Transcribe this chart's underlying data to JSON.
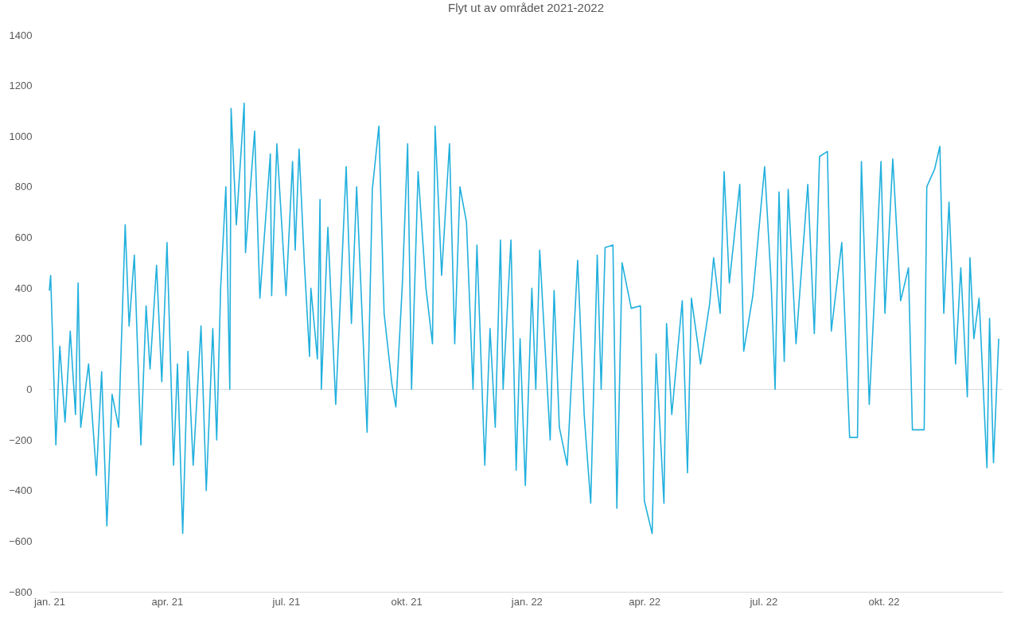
{
  "chart_data": {
    "type": "line",
    "title": "Flyt ut av området 2021-2022",
    "x": [
      "2021-01-01",
      "2021-01-02",
      "2021-01-06",
      "2021-01-09",
      "2021-01-13",
      "2021-01-17",
      "2021-01-21",
      "2021-01-23",
      "2021-01-25",
      "2021-01-31",
      "2021-02-06",
      "2021-02-10",
      "2021-02-14",
      "2021-02-18",
      "2021-02-23",
      "2021-02-28",
      "2021-03-03",
      "2021-03-07",
      "2021-03-12",
      "2021-03-16",
      "2021-03-19",
      "2021-03-24",
      "2021-03-28",
      "2021-04-01",
      "2021-04-06",
      "2021-04-09",
      "2021-04-13",
      "2021-04-17",
      "2021-04-21",
      "2021-04-27",
      "2021-05-01",
      "2021-05-06",
      "2021-05-09",
      "2021-05-12",
      "2021-05-16",
      "2021-05-19",
      "2021-05-20",
      "2021-05-24",
      "2021-05-30",
      "2021-05-31",
      "2021-06-07",
      "2021-06-11",
      "2021-06-19",
      "2021-06-20",
      "2021-06-24",
      "2021-07-01",
      "2021-07-06",
      "2021-07-08",
      "2021-07-11",
      "2021-07-15",
      "2021-07-19",
      "2021-07-20",
      "2021-07-25",
      "2021-07-27",
      "2021-07-28",
      "2021-08-02",
      "2021-08-08",
      "2021-08-16",
      "2021-08-20",
      "2021-08-24",
      "2021-09-01",
      "2021-09-05",
      "2021-09-10",
      "2021-09-14",
      "2021-09-20",
      "2021-09-23",
      "2021-09-28",
      "2021-10-02",
      "2021-10-05",
      "2021-10-10",
      "2021-10-16",
      "2021-10-21",
      "2021-10-23",
      "2021-10-28",
      "2021-11-03",
      "2021-11-07",
      "2021-11-11",
      "2021-11-16",
      "2021-11-21",
      "2021-11-24",
      "2021-11-30",
      "2021-12-04",
      "2021-12-08",
      "2021-12-12",
      "2021-12-14",
      "2021-12-20",
      "2021-12-24",
      "2021-12-27",
      "2021-12-31",
      "2022-01-05",
      "2022-01-08",
      "2022-01-11",
      "2022-01-19",
      "2022-01-22",
      "2022-01-26",
      "2022-02-01",
      "2022-02-09",
      "2022-02-14",
      "2022-02-19",
      "2022-02-24",
      "2022-02-27",
      "2022-03-02",
      "2022-03-08",
      "2022-03-11",
      "2022-03-15",
      "2022-03-22",
      "2022-03-29",
      "2022-04-01",
      "2022-04-07",
      "2022-04-10",
      "2022-04-16",
      "2022-04-18",
      "2022-04-22",
      "2022-04-30",
      "2022-05-04",
      "2022-05-07",
      "2022-05-14",
      "2022-05-21",
      "2022-05-24",
      "2022-05-29",
      "2022-06-01",
      "2022-06-05",
      "2022-06-13",
      "2022-06-16",
      "2022-06-23",
      "2022-07-02",
      "2022-07-07",
      "2022-07-10",
      "2022-07-13",
      "2022-07-17",
      "2022-07-20",
      "2022-07-26",
      "2022-08-04",
      "2022-08-09",
      "2022-08-13",
      "2022-08-19",
      "2022-08-22",
      "2022-08-30",
      "2022-09-05",
      "2022-09-11",
      "2022-09-14",
      "2022-09-20",
      "2022-09-29",
      "2022-10-02",
      "2022-10-08",
      "2022-10-14",
      "2022-10-20",
      "2022-10-23",
      "2022-11-01",
      "2022-11-03",
      "2022-11-09",
      "2022-11-13",
      "2022-11-16",
      "2022-11-20",
      "2022-11-25",
      "2022-11-29",
      "2022-12-04",
      "2022-12-06",
      "2022-12-09",
      "2022-12-13",
      "2022-12-19",
      "2022-12-21",
      "2022-12-24",
      "2022-12-28"
    ],
    "series": [
      {
        "color": "#22b0dd",
        "values": [
          390,
          450,
          -220,
          170,
          -130,
          230,
          -100,
          420,
          -150,
          100,
          -340,
          70,
          -540,
          -20,
          -150,
          650,
          250,
          530,
          -220,
          330,
          80,
          490,
          30,
          580,
          -300,
          100,
          -570,
          150,
          -300,
          250,
          -400,
          240,
          -200,
          400,
          800,
          0,
          1110,
          650,
          1130,
          540,
          1020,
          360,
          930,
          370,
          970,
          370,
          900,
          550,
          950,
          500,
          130,
          400,
          120,
          750,
          0,
          640,
          -60,
          880,
          260,
          800,
          -170,
          790,
          1040,
          300,
          20,
          -70,
          420,
          970,
          0,
          860,
          400,
          180,
          1040,
          450,
          970,
          180,
          800,
          660,
          0,
          570,
          -300,
          240,
          -150,
          590,
          0,
          590,
          -320,
          200,
          -380,
          400,
          0,
          550,
          -200,
          390,
          -150,
          -300,
          510,
          -100,
          -450,
          530,
          0,
          560,
          570,
          -470,
          500,
          320,
          330,
          -440,
          -570,
          140,
          -450,
          260,
          -100,
          350,
          -330,
          360,
          100,
          340,
          520,
          300,
          860,
          420,
          810,
          150,
          370,
          880,
          420,
          0,
          780,
          110,
          790,
          180,
          810,
          220,
          920,
          940,
          230,
          580,
          -190,
          -190,
          900,
          -60,
          900,
          300,
          910,
          350,
          480,
          -160,
          -160,
          800,
          870,
          960,
          300,
          740,
          100,
          480,
          -30,
          520,
          200,
          360,
          -310,
          280,
          -290,
          200
        ]
      }
    ],
    "xlim": [
      "2021-01-01",
      "2022-12-31"
    ],
    "xticks": [
      {
        "value": "2021-01-01",
        "label": "jan. 21"
      },
      {
        "value": "2021-04-01",
        "label": "apr. 21"
      },
      {
        "value": "2021-07-01",
        "label": "jul. 21"
      },
      {
        "value": "2021-10-01",
        "label": "okt. 21"
      },
      {
        "value": "2022-01-01",
        "label": "jan. 22"
      },
      {
        "value": "2022-04-01",
        "label": "apr. 22"
      },
      {
        "value": "2022-07-01",
        "label": "jul. 22"
      },
      {
        "value": "2022-10-01",
        "label": "okt. 22"
      }
    ],
    "ylim": [
      -800,
      1400
    ],
    "yticks": [
      -800,
      -600,
      -400,
      -200,
      0,
      200,
      400,
      600,
      800,
      1000,
      1200,
      1400
    ],
    "ref_lines": [
      {
        "axis": "y",
        "value": 0,
        "color": "#d9d9d9"
      }
    ],
    "grid": false,
    "marker": "none",
    "line_style": "solid"
  }
}
